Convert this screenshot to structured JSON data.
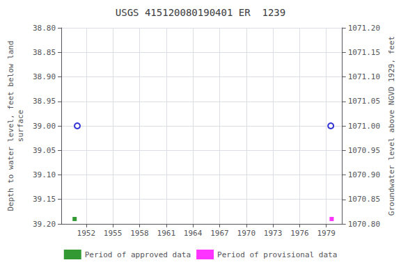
{
  "chart_data": {
    "type": "scatter",
    "title": "USGS 415120080190401 ER  1239",
    "y_label": "Depth to water level, feet below land\nsurface",
    "y2_label": "Groundwater level above NGVD 1929, feet",
    "xlim": [
      1949.2,
      1980.8
    ],
    "xticks": [
      1952,
      1955,
      1958,
      1961,
      1964,
      1967,
      1970,
      1973,
      1976,
      1979
    ],
    "ylim": [
      39.2,
      38.8
    ],
    "yticks": [
      {
        "value": 38.8,
        "label": "38.80"
      },
      {
        "value": 38.85,
        "label": "38.85"
      },
      {
        "value": 38.9,
        "label": "38.90"
      },
      {
        "value": 38.95,
        "label": "38.95"
      },
      {
        "value": 39.0,
        "label": "39.00"
      },
      {
        "value": 39.05,
        "label": "39.05"
      },
      {
        "value": 39.1,
        "label": "39.10"
      },
      {
        "value": 39.15,
        "label": "39.15"
      },
      {
        "value": 39.2,
        "label": "39.20"
      }
    ],
    "y2lim": [
      1070.8,
      1071.2
    ],
    "y2ticks": [
      {
        "value": 1070.8,
        "label": "1070.80"
      },
      {
        "value": 1070.85,
        "label": "1070.85"
      },
      {
        "value": 1070.9,
        "label": "1070.90"
      },
      {
        "value": 1070.95,
        "label": "1070.95"
      },
      {
        "value": 1071.0,
        "label": "1071.00"
      },
      {
        "value": 1071.05,
        "label": "1071.05"
      },
      {
        "value": 1071.1,
        "label": "1071.10"
      },
      {
        "value": 1071.15,
        "label": "1071.15"
      },
      {
        "value": 1071.2,
        "label": "1071.20"
      }
    ],
    "grid": true,
    "legend": "bottom",
    "series": [
      {
        "name": "Period of approved data",
        "color": "#008000",
        "marker": "square",
        "x": [
          1950.7
        ],
        "values": [
          39.19
        ]
      },
      {
        "name": "Period of provisional data",
        "color": "#ff00ff",
        "marker": "square",
        "x": [
          1979.6
        ],
        "values": [
          39.19
        ]
      },
      {
        "color": "#0000cc",
        "marker": "open_circle",
        "x": [
          1951.0,
          1979.5
        ],
        "values": [
          39.0,
          39.0
        ]
      }
    ]
  }
}
